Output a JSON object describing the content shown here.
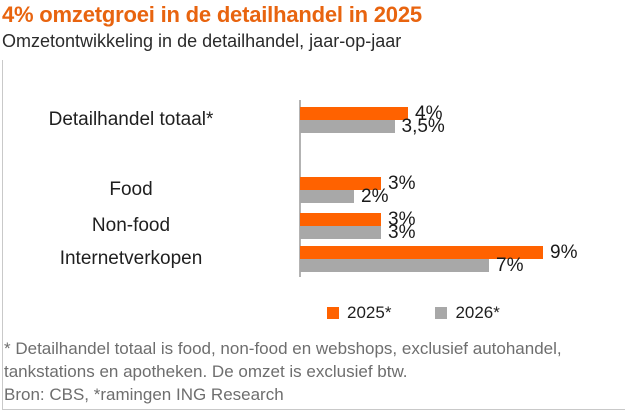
{
  "header": {
    "title": "4% omzetgroei in de detailhandel in 2025",
    "subtitle": "Omzetontwikkeling in de detailhandel, jaar-op-jaar"
  },
  "chart_data": {
    "type": "bar",
    "orientation": "horizontal",
    "title": "4% omzetgroei in de detailhandel in 2025",
    "subtitle": "Omzetontwikkeling in de detailhandel, jaar-op-jaar",
    "categories": [
      "Detailhandel totaal*",
      "Food",
      "Non-food",
      "Internetverkopen"
    ],
    "series": [
      {
        "name": "2025*",
        "color": "#ff6200",
        "values": [
          4,
          3,
          3,
          9
        ],
        "value_labels": [
          "4%",
          "3%",
          "3%",
          "9%"
        ]
      },
      {
        "name": "2026*",
        "color": "#a8a8a8",
        "values": [
          3.5,
          2,
          3,
          7
        ],
        "value_labels": [
          "3,5%",
          "2%",
          "3%",
          "7%"
        ]
      }
    ],
    "xlim": [
      0,
      10
    ],
    "unit": "%",
    "grid": false,
    "legend_position": "bottom"
  },
  "footer": {
    "note_line1": "* Detailhandel totaal is food, non-food en webshops, exclusief autohandel,",
    "note_line2": "tankstations en apotheken. De omzet is exclusief btw.",
    "source": "Bron: CBS, *ramingen ING Research"
  },
  "colors": {
    "title_accent": "#e8640f",
    "series_2025": "#ff6200",
    "series_2026": "#a8a8a8",
    "axis_line": "#b3b3b3",
    "text": "#1f1f1f",
    "muted_text": "#6e6e6e",
    "frame_border": "#c9c9c9"
  }
}
